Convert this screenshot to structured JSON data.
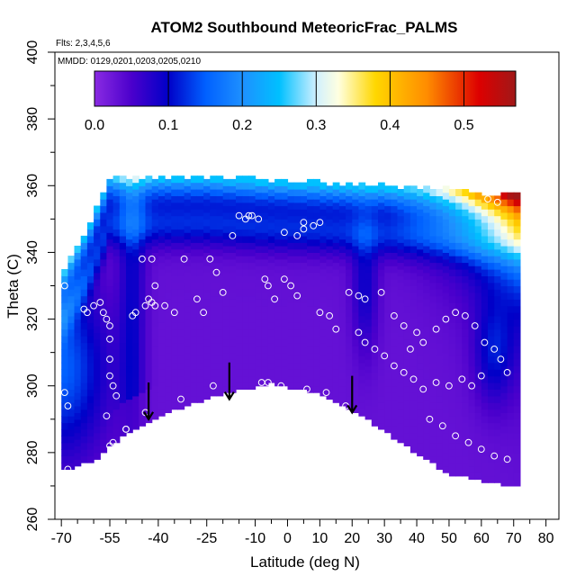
{
  "chart_data": {
    "type": "heatmap",
    "title": "ATOM2 Southbound MeteoricFrac_PALMS",
    "annotations": [
      "Flts: 2,3,4,5,6",
      "MMDD: 0129,0201,0203,0205,0210"
    ],
    "xlabel": "Latitude (deg N)",
    "ylabel": "Theta (C)",
    "xlim": [
      -72,
      84
    ],
    "ylim": [
      260,
      400
    ],
    "x_ticks": [
      -70,
      -55,
      -40,
      -25,
      -10,
      0,
      10,
      20,
      30,
      40,
      50,
      60,
      70,
      80
    ],
    "y_ticks": [
      260,
      280,
      300,
      320,
      340,
      360,
      380,
      400
    ],
    "colorbar": {
      "range": [
        0,
        0.57
      ],
      "ticks": [
        0.0,
        0.1,
        0.2,
        0.3,
        0.4,
        0.5
      ],
      "tick_labels": [
        "0.0",
        "0.1",
        "0.2",
        "0.3",
        "0.4",
        "0.5"
      ],
      "colors": [
        {
          "v": 0.0,
          "c": "#8a2be2"
        },
        {
          "v": 0.05,
          "c": "#4b00cc"
        },
        {
          "v": 0.1,
          "c": "#0000c8"
        },
        {
          "v": 0.15,
          "c": "#0060ff"
        },
        {
          "v": 0.2,
          "c": "#1e90ff"
        },
        {
          "v": 0.25,
          "c": "#00c0ff"
        },
        {
          "v": 0.3,
          "c": "#d0f0ff"
        },
        {
          "v": 0.33,
          "c": "#ffffe0"
        },
        {
          "v": 0.38,
          "c": "#ffd700"
        },
        {
          "v": 0.45,
          "c": "#ff8c00"
        },
        {
          "v": 0.52,
          "c": "#dd0000"
        },
        {
          "v": 0.57,
          "c": "#a01818"
        }
      ]
    },
    "data_region": {
      "lat_range": [
        -70,
        72
      ],
      "bottom_boundary": [
        [
          -70,
          275
        ],
        [
          -60,
          278
        ],
        [
          -50,
          286
        ],
        [
          -40,
          291
        ],
        [
          -30,
          295
        ],
        [
          -20,
          298
        ],
        [
          -10,
          300
        ],
        [
          -5,
          301
        ],
        [
          0,
          300
        ],
        [
          10,
          298
        ],
        [
          20,
          293
        ],
        [
          30,
          287
        ],
        [
          40,
          280
        ],
        [
          50,
          274
        ],
        [
          60,
          272
        ],
        [
          72,
          270
        ]
      ],
      "top_boundary": [
        [
          -70,
          333
        ],
        [
          -62,
          346
        ],
        [
          -55,
          362
        ],
        [
          -40,
          362
        ],
        [
          -25,
          362
        ],
        [
          -10,
          361
        ],
        [
          10,
          360
        ],
        [
          30,
          359
        ],
        [
          50,
          358
        ],
        [
          60,
          357
        ],
        [
          72,
          357
        ]
      ],
      "background_value": 0.03
    },
    "features": [
      {
        "name": "upper-envelope",
        "desc": "meteoric fraction rises from ~0.05 to >0.5 toward top boundary, largest at high northern latitudes"
      },
      {
        "name": "southern-edge",
        "desc": "elevated ~0.1-0.2 values in the southern-most lower region"
      },
      {
        "name": "blue-arches",
        "desc": "~0.1 bands bounding the central low region near 20S-10S and 20N-30N"
      }
    ],
    "sample_points": [
      [
        -69,
        330
      ],
      [
        -69,
        298
      ],
      [
        -68,
        294
      ],
      [
        -68,
        275
      ],
      [
        -63,
        323
      ],
      [
        -62,
        322
      ],
      [
        -60,
        324
      ],
      [
        -58,
        325
      ],
      [
        -57,
        322
      ],
      [
        -56,
        320
      ],
      [
        -55,
        318
      ],
      [
        -55,
        314
      ],
      [
        -55,
        308
      ],
      [
        -55,
        303
      ],
      [
        -54,
        300
      ],
      [
        -53,
        297
      ],
      [
        -56,
        291
      ],
      [
        -55,
        282
      ],
      [
        -54,
        283
      ],
      [
        -50,
        287
      ],
      [
        -48,
        321
      ],
      [
        -47,
        322
      ],
      [
        -44,
        324
      ],
      [
        -43,
        326
      ],
      [
        -42,
        325
      ],
      [
        -41,
        324
      ],
      [
        -45,
        338
      ],
      [
        -42,
        338
      ],
      [
        -41,
        330
      ],
      [
        -38,
        324
      ],
      [
        -35,
        322
      ],
      [
        -32,
        338
      ],
      [
        -28,
        326
      ],
      [
        -26,
        322
      ],
      [
        -24,
        338
      ],
      [
        -22,
        334
      ],
      [
        -20,
        328
      ],
      [
        -17,
        345
      ],
      [
        -15,
        351
      ],
      [
        -13,
        350
      ],
      [
        -12,
        351
      ],
      [
        -11,
        351
      ],
      [
        -9,
        350
      ],
      [
        -7,
        332
      ],
      [
        -6,
        330
      ],
      [
        -4,
        326
      ],
      [
        -1,
        332
      ],
      [
        1,
        330
      ],
      [
        3,
        327
      ],
      [
        5,
        349
      ],
      [
        8,
        348
      ],
      [
        10,
        349
      ],
      [
        -1,
        346
      ],
      [
        3,
        345
      ],
      [
        5,
        347
      ],
      [
        10,
        322
      ],
      [
        13,
        321
      ],
      [
        15,
        317
      ],
      [
        19,
        328
      ],
      [
        22,
        327
      ],
      [
        -8,
        301
      ],
      [
        -6,
        301
      ],
      [
        -2,
        300
      ],
      [
        6,
        299
      ],
      [
        12,
        298
      ],
      [
        18,
        294
      ],
      [
        -23,
        300
      ],
      [
        -33,
        296
      ],
      [
        -44,
        292
      ],
      [
        -50,
        287
      ],
      [
        22,
        316
      ],
      [
        24,
        313
      ],
      [
        27,
        311
      ],
      [
        30,
        309
      ],
      [
        33,
        306
      ],
      [
        36,
        304
      ],
      [
        39,
        302
      ],
      [
        42,
        299
      ],
      [
        46,
        301
      ],
      [
        50,
        300
      ],
      [
        54,
        302
      ],
      [
        57,
        300
      ],
      [
        60,
        303
      ],
      [
        38,
        311
      ],
      [
        42,
        313
      ],
      [
        46,
        317
      ],
      [
        49,
        320
      ],
      [
        52,
        322
      ],
      [
        55,
        321
      ],
      [
        58,
        318
      ],
      [
        61,
        313
      ],
      [
        64,
        311
      ],
      [
        66,
        308
      ],
      [
        68,
        304
      ],
      [
        24,
        326
      ],
      [
        29,
        328
      ],
      [
        33,
        321
      ],
      [
        36,
        318
      ],
      [
        40,
        316
      ],
      [
        44,
        290
      ],
      [
        48,
        288
      ],
      [
        52,
        285
      ],
      [
        56,
        283
      ],
      [
        60,
        281
      ],
      [
        64,
        279
      ],
      [
        68,
        278
      ],
      [
        62,
        356
      ],
      [
        65,
        355
      ]
    ],
    "arrows": [
      {
        "lat": -43,
        "theta_top": 301,
        "theta_bottom": 290
      },
      {
        "lat": -18,
        "theta_top": 307,
        "theta_bottom": 296
      },
      {
        "lat": 20,
        "theta_top": 303,
        "theta_bottom": 292
      }
    ]
  }
}
